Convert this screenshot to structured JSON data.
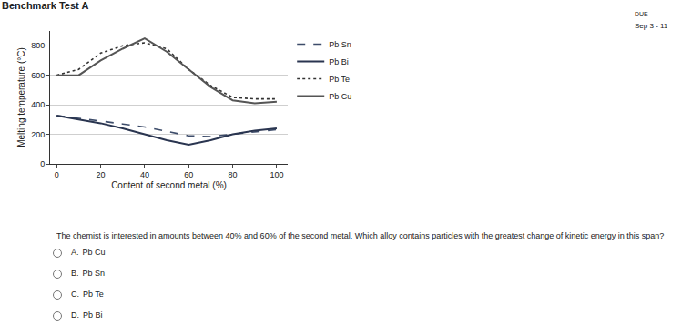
{
  "header": {
    "title": "Benchmark Test A",
    "due_label": "DUE",
    "due_date": "Sep 3 - 11"
  },
  "chart_data": {
    "type": "line",
    "x_label": "Content of second metal (%)",
    "y_label": "Melting temperature (°C)",
    "x": [
      0,
      10,
      20,
      30,
      40,
      50,
      60,
      70,
      80,
      90,
      100
    ],
    "series": [
      {
        "name": "Pb Sn",
        "color": "#3d4c6a",
        "line_style": "dash",
        "values": [
          327,
          310,
          290,
          270,
          250,
          220,
          190,
          185,
          200,
          215,
          232
        ]
      },
      {
        "name": "Pb Bi",
        "color": "#2a3550",
        "line_style": "solid",
        "values": [
          327,
          300,
          275,
          240,
          200,
          160,
          130,
          160,
          200,
          225,
          240
        ]
      },
      {
        "name": "Pb Te",
        "color": "#333333",
        "line_style": "dot",
        "values": [
          600,
          640,
          750,
          800,
          820,
          780,
          640,
          530,
          450,
          440,
          440
        ]
      },
      {
        "name": "Pb Cu",
        "color": "#555555",
        "line_style": "solid",
        "values": [
          600,
          600,
          700,
          780,
          850,
          760,
          640,
          520,
          430,
          410,
          420
        ]
      }
    ],
    "xlim": [
      -3,
      105
    ],
    "xticks": [
      0,
      20,
      40,
      60,
      80,
      100
    ],
    "ylim": [
      0,
      900
    ],
    "yticks": [
      0,
      200,
      400,
      600,
      800
    ],
    "grid": true,
    "legend": "right"
  },
  "question": "The chemist is interested in amounts between 40% and 60% of the second metal. Which alloy contains particles with the greatest change of kinetic energy in this span?",
  "options": [
    {
      "letter": "A.",
      "text": "Pb Cu"
    },
    {
      "letter": "B.",
      "text": "Pb Sn"
    },
    {
      "letter": "C.",
      "text": "Pb Te"
    },
    {
      "letter": "D.",
      "text": "Pb Bi"
    }
  ]
}
